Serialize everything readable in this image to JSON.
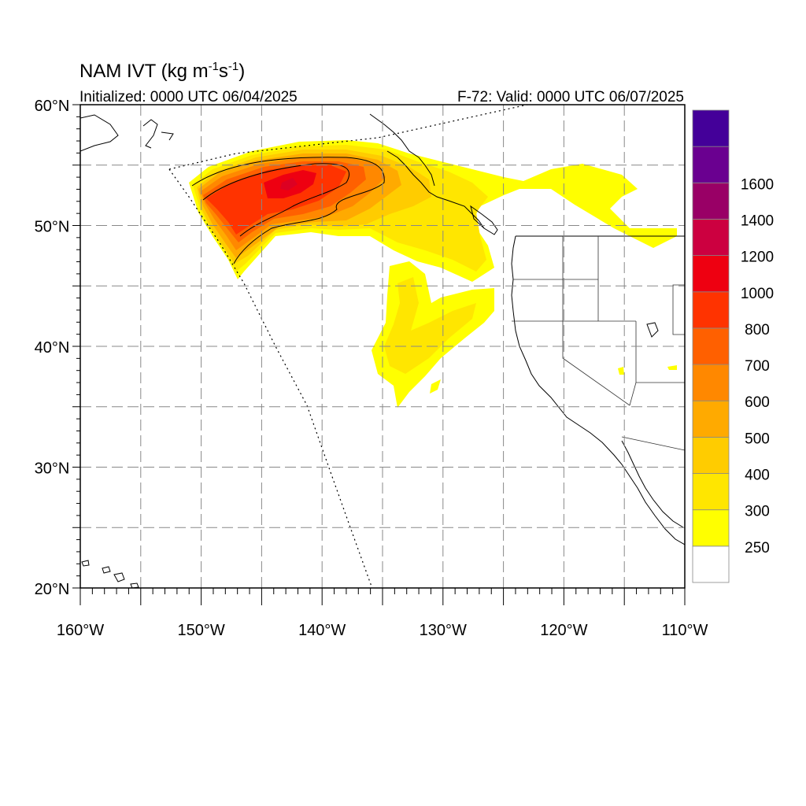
{
  "title": {
    "main": "NAM IVT (kg m",
    "sup1": "-1",
    "mid": "s",
    "sup2": "-1",
    "end": ")"
  },
  "subtitle_left": "Initialized: 0000 UTC 06/04/2025",
  "subtitle_right": "F-72: Valid: 0000 UTC 06/07/2025",
  "lat_ticks": [
    {
      "value": 60,
      "label": "60°N"
    },
    {
      "value": 50,
      "label": "50°N"
    },
    {
      "value": 40,
      "label": "40°N"
    },
    {
      "value": 30,
      "label": "30°N"
    },
    {
      "value": 20,
      "label": "20°N"
    }
  ],
  "lon_ticks": [
    {
      "value": -160,
      "label": "160°W"
    },
    {
      "value": -150,
      "label": "150°W"
    },
    {
      "value": -140,
      "label": "140°W"
    },
    {
      "value": -130,
      "label": "130°W"
    },
    {
      "value": -120,
      "label": "120°W"
    },
    {
      "value": -110,
      "label": "110°W"
    }
  ],
  "extent": {
    "lon": [
      -160,
      -110
    ],
    "lat": [
      20,
      60
    ]
  },
  "grid_dashed": true,
  "colorbar": {
    "levels": [
      {
        "color": "#ffffff"
      },
      {
        "color": "#ffff00",
        "label": "250"
      },
      {
        "color": "#ffe600",
        "label": "300"
      },
      {
        "color": "#ffcc00",
        "label": "400"
      },
      {
        "color": "#ffaa00",
        "label": "500"
      },
      {
        "color": "#ff8800",
        "label": "600"
      },
      {
        "color": "#ff6000",
        "label": "700"
      },
      {
        "color": "#ff3300",
        "label": "800"
      },
      {
        "color": "#ee0011",
        "label": "1000"
      },
      {
        "color": "#cc0040",
        "label": "1200"
      },
      {
        "color": "#990066",
        "label": "1400"
      },
      {
        "color": "#6a0090",
        "label": "1600"
      },
      {
        "color": "#440099"
      }
    ]
  }
}
